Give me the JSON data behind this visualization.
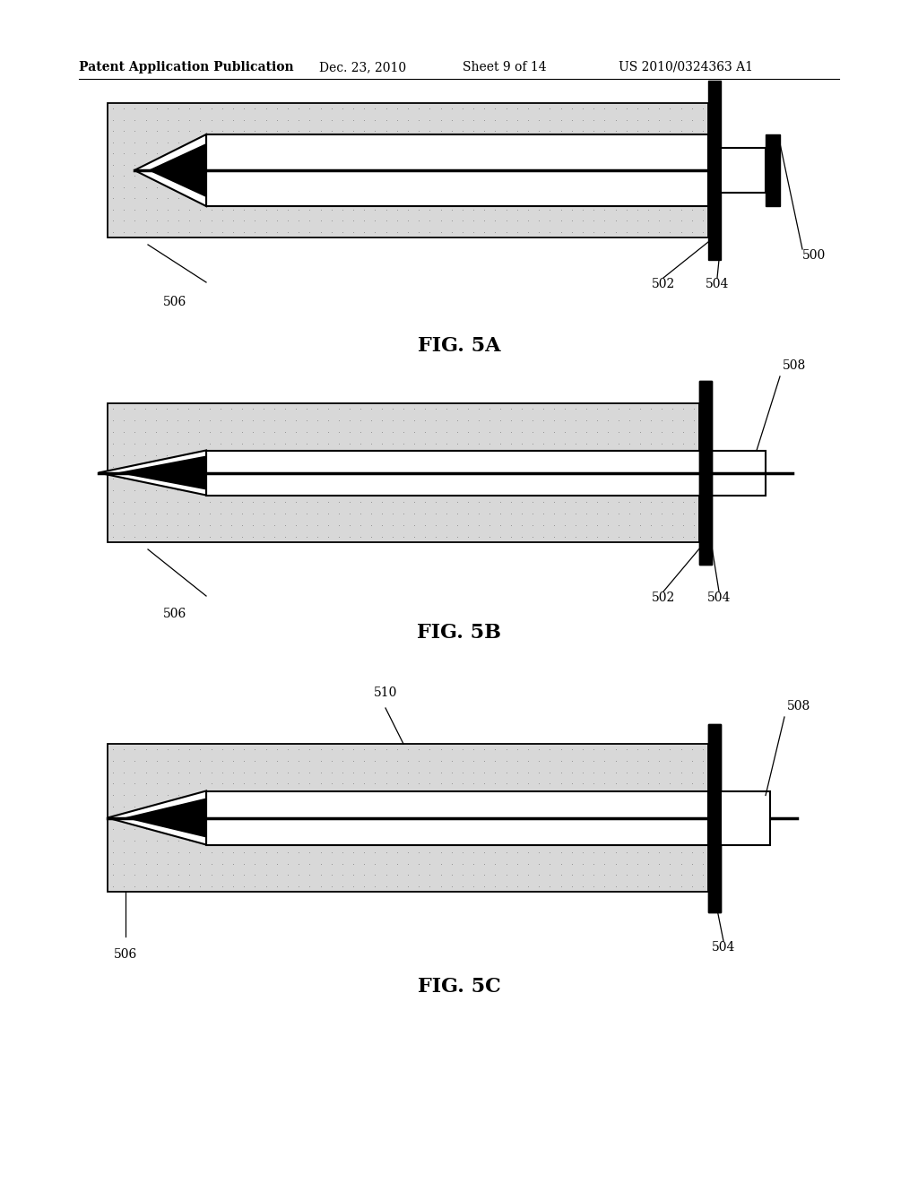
{
  "bg_color": "#ffffff",
  "header_text": "Patent Application Publication",
  "header_date": "Dec. 23, 2010",
  "header_sheet": "Sheet 9 of 14",
  "header_patent": "US 2010/0324363 A1",
  "stipple_color": "#d0d0d0",
  "line_color": "#000000"
}
